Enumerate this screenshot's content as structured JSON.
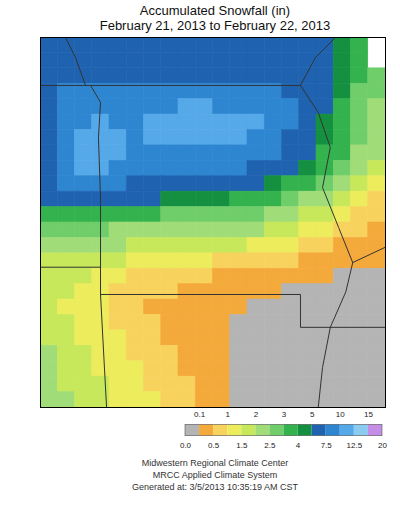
{
  "chart_data": {
    "type": "heatmap",
    "title": "Accumulated Snowfall (in)",
    "subtitle": "February 21, 2013 to February 22, 2013",
    "caption": [
      "Midwestern Regional Climate Center",
      "MRCC Applied Climate System",
      "Generated at: 3/5/2013 10:35:19 AM CST"
    ],
    "tick_labels": false,
    "values": [
      [
        6.2,
        6.2,
        6.2,
        6.2,
        6.2,
        6.2,
        6.2,
        6.2,
        6.2,
        6.2,
        6.2,
        6.2,
        6.2,
        6.2,
        6.0,
        5.8,
        5.3,
        4.5,
        3.5,
        null
      ],
      [
        6.5,
        6.8,
        7.0,
        7.0,
        7.0,
        7.2,
        7.2,
        7.2,
        7.0,
        7.0,
        7.0,
        7.0,
        6.8,
        6.5,
        6.2,
        5.8,
        5.2,
        4.3,
        3.2,
        null
      ],
      [
        6.8,
        7.2,
        7.4,
        7.4,
        7.4,
        7.4,
        7.4,
        7.4,
        7.4,
        7.4,
        7.4,
        7.3,
        7.0,
        6.8,
        6.4,
        6.0,
        5.3,
        4.2,
        3.0,
        2.6
      ],
      [
        7.0,
        7.6,
        7.8,
        7.9,
        8.0,
        8.0,
        8.0,
        8.2,
        8.2,
        8.2,
        8.2,
        8.0,
        7.8,
        7.6,
        7.0,
        6.2,
        5.2,
        4.0,
        2.9,
        2.5
      ],
      [
        7.2,
        8.3,
        8.8,
        9.0,
        9.2,
        9.3,
        9.6,
        9.8,
        10.0,
        10.0,
        9.8,
        9.6,
        9.2,
        8.6,
        7.6,
        6.5,
        5.0,
        3.8,
        2.8,
        2.4
      ],
      [
        7.4,
        8.8,
        9.6,
        10.0,
        9.8,
        9.6,
        10.2,
        10.6,
        10.8,
        10.8,
        10.6,
        10.4,
        10.1,
        9.0,
        7.8,
        6.4,
        4.8,
        3.6,
        2.7,
        2.3
      ],
      [
        7.4,
        9.6,
        10.4,
        10.6,
        10.4,
        9.8,
        10.2,
        10.6,
        10.8,
        10.6,
        10.4,
        10.2,
        9.6,
        8.6,
        7.4,
        6.0,
        4.4,
        3.3,
        2.6,
        2.2
      ],
      [
        7.4,
        9.8,
        10.6,
        10.8,
        10.4,
        9.6,
        9.6,
        9.8,
        9.8,
        9.6,
        9.4,
        9.0,
        8.4,
        7.6,
        6.6,
        5.2,
        3.9,
        3.0,
        2.4,
        2.1
      ],
      [
        7.2,
        9.4,
        10.2,
        10.2,
        9.6,
        9.0,
        8.8,
        8.8,
        8.6,
        8.4,
        8.2,
        7.8,
        7.2,
        6.4,
        5.4,
        4.3,
        3.2,
        2.6,
        2.2,
        1.9
      ],
      [
        6.6,
        8.0,
        8.4,
        8.2,
        7.8,
        7.4,
        7.2,
        7.0,
        6.8,
        6.6,
        6.4,
        6.0,
        5.4,
        4.6,
        3.8,
        3.0,
        2.6,
        2.2,
        1.8,
        1.4
      ],
      [
        5.4,
        5.8,
        5.8,
        5.6,
        5.4,
        5.2,
        5.0,
        4.8,
        4.6,
        4.4,
        4.1,
        3.8,
        3.4,
        3.0,
        2.7,
        2.4,
        2.1,
        1.7,
        1.2,
        0.9
      ],
      [
        3.6,
        3.8,
        3.6,
        3.4,
        3.2,
        3.1,
        3.0,
        2.9,
        2.8,
        2.8,
        2.7,
        2.6,
        2.5,
        2.3,
        2.1,
        1.9,
        1.6,
        1.2,
        0.8,
        0.6
      ],
      [
        2.6,
        2.7,
        2.6,
        2.5,
        2.4,
        2.4,
        2.3,
        2.3,
        2.3,
        2.3,
        2.2,
        2.2,
        2.1,
        1.9,
        1.7,
        1.4,
        1.0,
        0.7,
        0.5,
        0.4
      ],
      [
        2.2,
        2.3,
        2.2,
        2.1,
        2.0,
        1.9,
        1.8,
        1.8,
        1.7,
        1.7,
        1.6,
        1.5,
        1.4,
        1.2,
        1.0,
        0.8,
        0.6,
        0.45,
        0.4,
        0.35
      ],
      [
        1.9,
        1.9,
        1.8,
        1.6,
        1.5,
        1.3,
        1.2,
        1.1,
        1.0,
        1.0,
        0.9,
        0.8,
        0.7,
        0.6,
        0.5,
        0.45,
        0.4,
        0.35,
        0.3,
        0.3
      ],
      [
        1.7,
        1.6,
        1.5,
        1.3,
        1.1,
        0.9,
        0.8,
        0.7,
        0.6,
        0.5,
        0.45,
        0.4,
        0.4,
        0.35,
        0.3,
        0.2,
        0.12,
        0.08,
        0.06,
        0.05
      ],
      [
        1.6,
        1.5,
        1.3,
        1.1,
        0.9,
        0.8,
        0.6,
        0.5,
        0.45,
        0.4,
        0.35,
        0.3,
        0.2,
        0.1,
        0.07,
        0.05,
        0.04,
        0.04,
        0.04,
        0.04
      ],
      [
        1.6,
        1.4,
        1.2,
        1.0,
        0.8,
        0.6,
        0.45,
        0.4,
        0.35,
        0.3,
        0.25,
        0.15,
        0.08,
        0.05,
        0.04,
        0.04,
        0.04,
        0.04,
        0.04,
        0.04
      ],
      [
        1.7,
        1.5,
        1.3,
        1.1,
        0.9,
        0.7,
        0.5,
        0.4,
        0.35,
        0.3,
        0.2,
        0.09,
        0.05,
        0.04,
        0.04,
        0.04,
        0.04,
        0.04,
        0.04,
        0.04
      ],
      [
        1.8,
        1.6,
        1.4,
        1.2,
        1.0,
        0.8,
        0.6,
        0.45,
        0.35,
        0.3,
        0.15,
        0.07,
        0.04,
        0.04,
        0.04,
        0.04,
        0.04,
        0.04,
        0.04,
        0.04
      ],
      [
        2.0,
        1.7,
        1.5,
        1.3,
        1.1,
        0.9,
        0.7,
        0.5,
        0.4,
        0.3,
        0.12,
        0.05,
        0.04,
        0.04,
        0.04,
        0.04,
        0.04,
        0.04,
        0.04,
        0.04
      ],
      [
        2.1,
        1.8,
        1.6,
        1.4,
        1.2,
        1.0,
        0.8,
        0.6,
        0.45,
        0.3,
        0.1,
        0.05,
        0.04,
        0.04,
        0.04,
        0.04,
        0.04,
        0.04,
        0.04,
        0.04
      ],
      [
        2.2,
        1.9,
        1.7,
        1.5,
        1.3,
        1.1,
        0.9,
        0.7,
        0.5,
        0.35,
        0.12,
        0.05,
        0.04,
        0.04,
        0.04,
        0.04,
        0.04,
        0.04,
        0.04,
        0.04
      ],
      [
        2.3,
        2.0,
        1.8,
        1.6,
        1.4,
        1.2,
        1.0,
        0.8,
        0.55,
        0.4,
        0.15,
        0.06,
        0.04,
        0.04,
        0.04,
        0.04,
        0.04,
        0.04,
        0.04,
        0.04
      ]
    ],
    "colorbar": {
      "ticks": [
        {
          "value": 0,
          "label": "0.0"
        },
        0.1,
        0.5,
        1,
        1.5,
        2,
        2.5,
        3,
        4,
        5,
        7.5,
        10,
        12.5,
        15,
        20
      ],
      "colors": [
        "#b4b4b4",
        "#f4a93b",
        "#f7d35e",
        "#ecec5c",
        "#c6e85a",
        "#a0dc78",
        "#6fcd6a",
        "#33b24e",
        "#159040",
        "#1f63b0",
        "#2e86d0",
        "#56a9e8",
        "#8ccbf0",
        "#c58ee6"
      ]
    }
  }
}
